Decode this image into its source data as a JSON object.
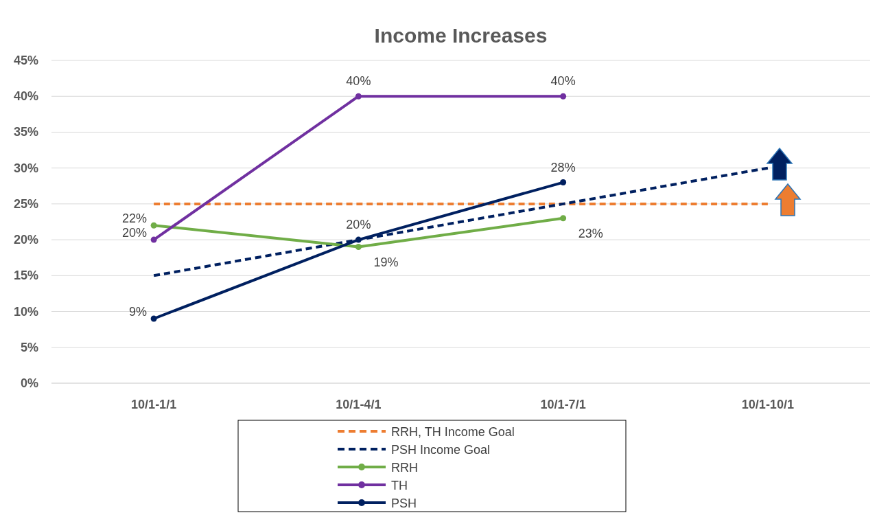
{
  "chart_data": {
    "type": "line",
    "title": "Income Increases",
    "categories": [
      "10/1-1/1",
      "10/1-4/1",
      "10/1-7/1",
      "10/1-10/1"
    ],
    "series": [
      {
        "name": "RRH, TH Income Goal",
        "color": "#ed7d31",
        "values": [
          25,
          25,
          25,
          25
        ],
        "line_style": "dashed",
        "marker": "none"
      },
      {
        "name": "PSH Income Goal",
        "color": "#002060",
        "values": [
          15,
          20,
          25,
          30
        ],
        "line_style": "dashed",
        "marker": "none"
      },
      {
        "name": "RRH",
        "color": "#70ad47",
        "values": [
          22,
          19,
          23,
          null
        ],
        "value_labels": [
          "22%",
          "19%",
          "23%",
          null
        ],
        "line_style": "solid",
        "marker": "circle"
      },
      {
        "name": "TH",
        "color": "#7030a0",
        "values": [
          20,
          40,
          40,
          null
        ],
        "value_labels": [
          "20%",
          "40%",
          "40%",
          null
        ],
        "line_style": "solid",
        "marker": "circle"
      },
      {
        "name": "PSH",
        "color": "#002060",
        "values": [
          9,
          20,
          28,
          null
        ],
        "value_labels": [
          "9%",
          "20%",
          "28%",
          null
        ],
        "line_style": "solid",
        "marker": "circle"
      }
    ],
    "ylim": [
      0,
      45
    ],
    "yticks": [
      {
        "value": 0,
        "label": "0%"
      },
      {
        "value": 5,
        "label": "5%"
      },
      {
        "value": 10,
        "label": "10%"
      },
      {
        "value": 15,
        "label": "15%"
      },
      {
        "value": 20,
        "label": "20%"
      },
      {
        "value": 25,
        "label": "25%"
      },
      {
        "value": 30,
        "label": "30%"
      },
      {
        "value": 35,
        "label": "35%"
      },
      {
        "value": 40,
        "label": "40%"
      },
      {
        "value": 45,
        "label": "45%"
      }
    ],
    "grid": "y",
    "legend": "bottom"
  }
}
